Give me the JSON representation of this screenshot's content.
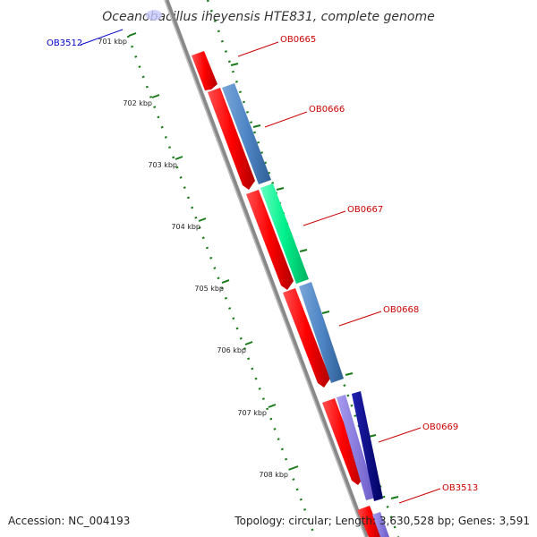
{
  "title": "Oceanobacillus iheyensis HTE831, complete genome",
  "accession_text": "Accession: NC_004193",
  "summary_text": "Topology: circular; Length: 3,630,528 bp; Genes: 3,591",
  "ticks": [
    "701 kbp",
    "702 kbp",
    "703 kbp",
    "704 kbp",
    "705 kbp",
    "706 kbp",
    "707 kbp",
    "708 kbp"
  ],
  "gene_labels": [
    {
      "text": "OB3512",
      "color": "#0000cc"
    },
    {
      "text": "OB0665",
      "color": "#cc0000"
    },
    {
      "text": "OB0666",
      "color": "#cc0000"
    },
    {
      "text": "OB0667",
      "color": "#cc0000"
    },
    {
      "text": "OB0668",
      "color": "#cc0000"
    },
    {
      "text": "OB0669",
      "color": "#cc0000"
    },
    {
      "text": "OB3513",
      "color": "#cc0000"
    }
  ],
  "colors": {
    "backbone": "#8c8c8c",
    "cds": "#ff0000",
    "blue_feature": "#4f86c6",
    "green_feature": "#00f08c",
    "navy_feature": "#000088",
    "lavender_feature": "#8878e0",
    "tick": "#1a7a1a"
  }
}
